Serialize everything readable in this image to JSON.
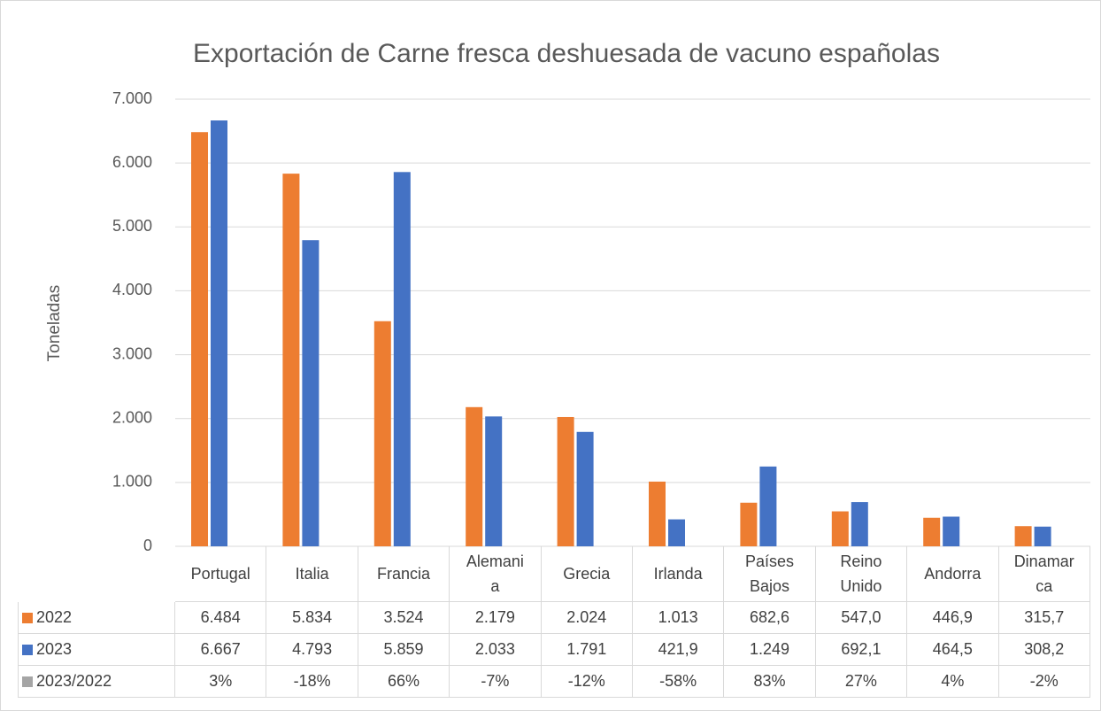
{
  "chart_data": {
    "type": "bar",
    "title": "Exportación de Carne fresca deshuesada de vacuno españolas",
    "y_label": "Toneladas",
    "categories": [
      "Portugal",
      "Italia",
      "Francia",
      "Alemania",
      "Grecia",
      "Irlanda",
      "Países Bajos",
      "Reino Unido",
      "Andorra",
      "Dinamarca"
    ],
    "series": [
      {
        "name": "2022",
        "color": "#ed7d31",
        "values": [
          6484,
          5834,
          3524,
          2179,
          2024,
          1013,
          682.6,
          547.0,
          446.9,
          315.7
        ],
        "value_labels": [
          "6.484",
          "5.834",
          "3.524",
          "2.179",
          "2.024",
          "1.013",
          "682,6",
          "547,0",
          "446,9",
          "315,7"
        ]
      },
      {
        "name": "2023",
        "color": "#4472c4",
        "values": [
          6667,
          4793,
          5859,
          2033,
          1791,
          421.9,
          1249,
          692.1,
          464.5,
          308.2
        ],
        "value_labels": [
          "6.667",
          "4.793",
          "5.859",
          "2.033",
          "1.791",
          "421,9",
          "1.249",
          "692,1",
          "464,5",
          "308,2"
        ]
      },
      {
        "name": "2023/2022",
        "color": "#a5a5a5",
        "table_only": true,
        "values": [
          3,
          -18,
          66,
          -7,
          -12,
          -58,
          83,
          27,
          4,
          -2
        ],
        "value_labels": [
          "3%",
          "-18%",
          "66%",
          "-7%",
          "-12%",
          "-58%",
          "83%",
          "27%",
          "4%",
          "-2%"
        ]
      }
    ],
    "ylim": [
      0,
      7000
    ],
    "yticks": [
      0,
      {
        "value": 1000,
        "label": "1.000"
      },
      {
        "value": 2000,
        "label": "2.000"
      },
      {
        "value": 3000,
        "label": "3.000"
      },
      {
        "value": 4000,
        "label": "4.000"
      },
      {
        "value": 5000,
        "label": "5.000"
      },
      {
        "value": 6000,
        "label": "6.000"
      },
      {
        "value": 7000,
        "label": "7.000"
      }
    ],
    "grid": true
  }
}
